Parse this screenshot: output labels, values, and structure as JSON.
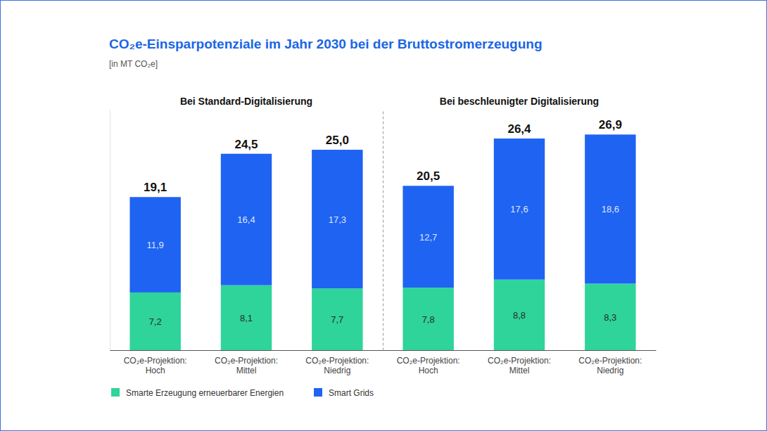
{
  "title": "CO₂e-Einsparpotenziale im Jahr 2030 bei der Bruttostromerzeugung",
  "subtitle": "[in MT CO₂e]",
  "chart_data": [
    {
      "type": "bar",
      "title": "Bei Standard-Digitalisierung",
      "categories": [
        "CO₂e-Projektion: Hoch",
        "CO₂e-Projektion: Mittel",
        "CO₂e-Projektion: Niedrig"
      ],
      "series": [
        {
          "name": "Smarte Erzeugung erneuerbarer Energien",
          "color": "#2fd49a",
          "values": [
            7.2,
            8.1,
            7.7
          ],
          "value_labels": [
            "7,2",
            "8,1",
            "7,7"
          ]
        },
        {
          "name": "Smart Grids",
          "color": "#1f63f2",
          "values": [
            11.9,
            16.4,
            17.3
          ],
          "value_labels": [
            "11,9",
            "16,4",
            "17,3"
          ]
        }
      ],
      "totals": [
        19.1,
        24.5,
        25.0
      ],
      "total_labels": [
        "19,1",
        "24,5",
        "25,0"
      ],
      "ylim": [
        0,
        30
      ],
      "yticks": [
        0
      ],
      "stacked": true,
      "data_labels": true,
      "tick_labels": "x",
      "grid": false,
      "legend": "bottom-left"
    },
    {
      "type": "bar",
      "title": "Bei beschleunigter Digitalisierung",
      "categories": [
        "CO₂e-Projektion: Hoch",
        "CO₂e-Projektion: Mittel",
        "CO₂e-Projektion: Niedrig"
      ],
      "series": [
        {
          "name": "Smarte Erzeugung erneuerbarer Energien",
          "color": "#2fd49a",
          "values": [
            7.8,
            8.8,
            8.3
          ],
          "value_labels": [
            "7,8",
            "8,8",
            "8,3"
          ]
        },
        {
          "name": "Smart Grids",
          "color": "#1f63f2",
          "values": [
            12.7,
            17.6,
            18.6
          ],
          "value_labels": [
            "12,7",
            "17,6",
            "18,6"
          ]
        }
      ],
      "totals": [
        20.5,
        26.4,
        26.9
      ],
      "total_labels": [
        "20,5",
        "26,4",
        "26,9"
      ],
      "ylim": [
        0,
        30
      ],
      "yticks": [
        0
      ],
      "stacked": true,
      "data_labels": true,
      "tick_labels": "x",
      "grid": false
    }
  ]
}
